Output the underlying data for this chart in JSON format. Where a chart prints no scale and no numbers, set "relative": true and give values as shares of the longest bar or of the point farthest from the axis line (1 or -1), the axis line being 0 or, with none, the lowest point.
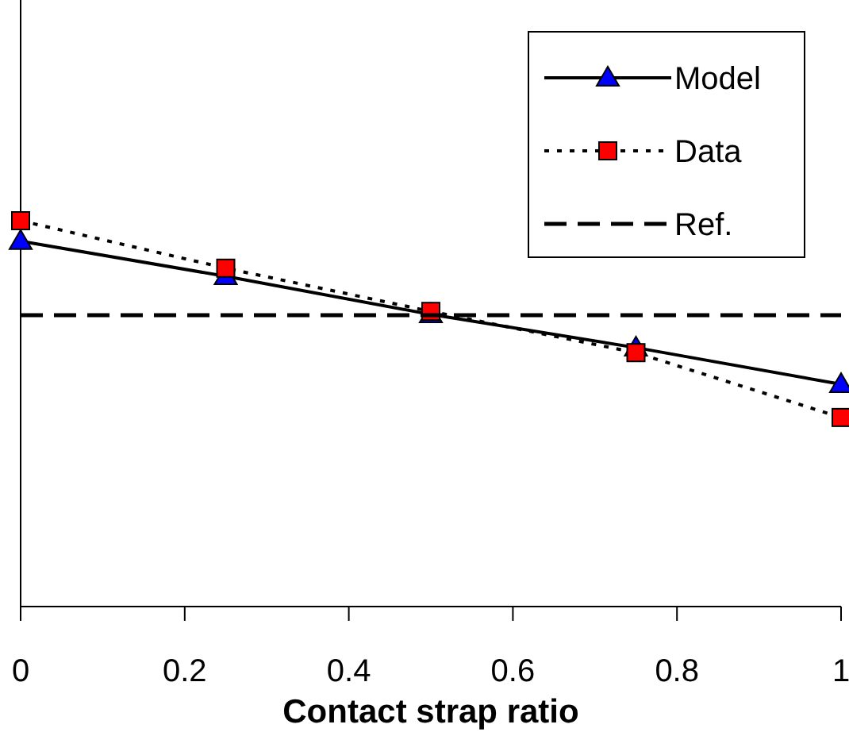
{
  "chart_data": {
    "type": "line",
    "xlabel": "Contact strap ratio",
    "relative": true,
    "x": [
      0,
      0.25,
      0.5,
      0.75,
      1
    ],
    "xlim": [
      0,
      1
    ],
    "xticks": [
      0,
      0.2,
      0.4,
      0.6,
      0.8,
      1
    ],
    "legend": "top right",
    "series": [
      {
        "name": "Model",
        "color": "#0000ff",
        "marker": "triangle",
        "line_style": "solid",
        "values": [
          0.947,
          0.856,
          0.757,
          0.671,
          0.576
        ]
      },
      {
        "name": "Data",
        "color": "#ff0000",
        "marker": "square",
        "line_style": "dotted",
        "values": [
          1,
          0.877,
          0.765,
          0.658,
          0.49
        ]
      },
      {
        "name": "Ref.",
        "color": "#000000",
        "marker": "none",
        "line_style": "dashed",
        "values": [
          0.755,
          0.755,
          0.755,
          0.755,
          0.755
        ]
      }
    ]
  }
}
